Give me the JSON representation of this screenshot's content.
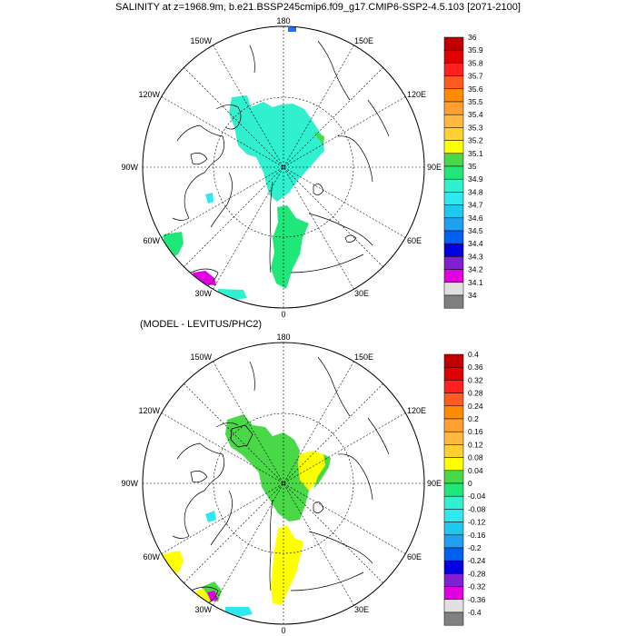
{
  "title": "SALINITY at z=1968.9m, b.e21.BSSP245cmip6.f09_g17.CMIP6-SSP2-4.5.103 [2071-2100]",
  "subtitle": "(MODEL - LEVITUS/PHC2)",
  "longitude_labels": {
    "top": "180",
    "bottom": "0",
    "left": "90W",
    "right": "90E",
    "upper_left": "150W",
    "upper_right": "150E",
    "left_upper": "120W",
    "right_upper": "120E",
    "left_lower": "60W",
    "right_lower": "60E",
    "lower_left": "30W",
    "lower_right": "30E"
  },
  "colorbar_top": {
    "labels": [
      "36",
      "35.9",
      "35.8",
      "35.7",
      "35.6",
      "35.5",
      "35.4",
      "35.3",
      "35.2",
      "35.1",
      "35",
      "34.9",
      "34.8",
      "34.7",
      "34.6",
      "34.5",
      "34.4",
      "34.3",
      "34.2",
      "34.1",
      "34"
    ],
    "colors": [
      "#c00000",
      "#e00000",
      "#ff2020",
      "#ff5a20",
      "#ff8c00",
      "#ffa030",
      "#ffb840",
      "#ffd030",
      "#ffff00",
      "#48d848",
      "#20e878",
      "#30f0d0",
      "#30e8f0",
      "#20c8f0",
      "#20a0f0",
      "#0060f0",
      "#0000e0",
      "#8020d0",
      "#e000e0",
      "#e0e0e0",
      "#808080"
    ]
  },
  "colorbar_bottom": {
    "labels": [
      "0.4",
      "0.36",
      "0.32",
      "0.28",
      "0.24",
      "0.2",
      "0.16",
      "0.12",
      "0.08",
      "0.04",
      "0",
      "-0.04",
      "-0.08",
      "-0.12",
      "-0.16",
      "-0.2",
      "-0.24",
      "-0.28",
      "-0.32",
      "-0.36",
      "-0.4"
    ],
    "colors": [
      "#c00000",
      "#e00000",
      "#ff2020",
      "#ff5a20",
      "#ff8c00",
      "#ffa030",
      "#ffb840",
      "#ffd030",
      "#ffff00",
      "#48d848",
      "#20e878",
      "#30f0d0",
      "#30e8f0",
      "#20c8f0",
      "#20a0f0",
      "#0060f0",
      "#0000e0",
      "#8020d0",
      "#e000e0",
      "#e0e0e0",
      "#808080"
    ]
  },
  "colors": {
    "top_main": "#30f0d0",
    "top_atlantic": "#20e878",
    "top_green_edge": "#48d848",
    "bottom_main": "#48d848",
    "bottom_yellow": "#ffff00",
    "bottom_cyan": "#30e8f0",
    "magenta": "#e000e0",
    "blue": "#2070f0"
  }
}
